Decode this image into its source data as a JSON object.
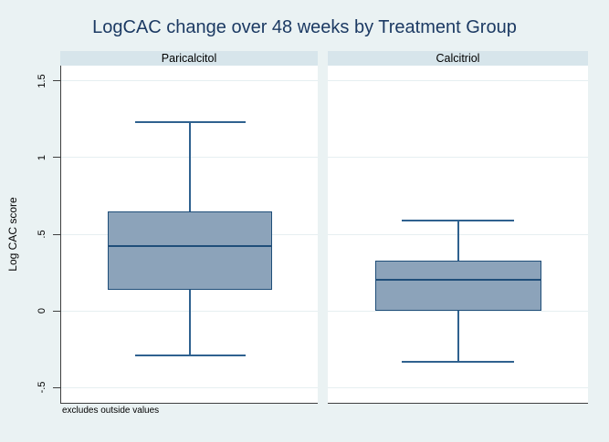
{
  "title": "LogCAC change over 48 weeks by Treatment Group",
  "note": "excludes outside values",
  "axis": {
    "ylabel": "Log CAC score"
  },
  "colors": {
    "bg": "#eaf2f3",
    "strip": "#d7e5eb",
    "plot_bg": "#ffffff",
    "grid": "#e6eff1",
    "axis_line": "#3f3f3f",
    "box_fill": "#8ca3ba",
    "box_border": "#1f4e79",
    "whisker": "#2f618f",
    "title_color": "#1c3a63",
    "text": "#000000"
  },
  "chart_data": {
    "type": "box",
    "title": "LogCAC change over 48 weeks by Treatment Group",
    "ylabel": "Log CAC score",
    "note": "excludes outside values",
    "grid": true,
    "legend": "none",
    "ylim": [
      -0.6,
      1.6
    ],
    "yticks": {
      "values": [
        -0.5,
        0,
        0.5,
        1,
        1.5
      ],
      "labels": [
        "-.5",
        "0",
        ".5",
        "1",
        "1.5"
      ]
    },
    "panels": [
      {
        "label": "Paricalcitol",
        "whisker_low": -0.29,
        "q1": 0.14,
        "median": 0.42,
        "q3": 0.65,
        "whisker_high": 1.23
      },
      {
        "label": "Calcitriol",
        "whisker_low": -0.33,
        "q1": 0.0,
        "median": 0.2,
        "q3": 0.33,
        "whisker_high": 0.59
      }
    ]
  }
}
